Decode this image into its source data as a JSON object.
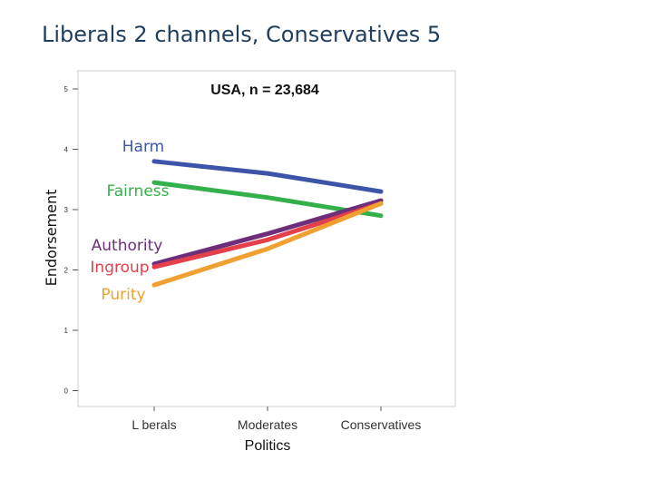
{
  "slide": {
    "title": "Liberals 2 channels, Conservatives 5"
  },
  "chart_data": {
    "type": "line",
    "title": "USA, n = 23,684",
    "xlabel": "Politics",
    "ylabel": "Endorsement",
    "categories": [
      "L berals",
      "Moderates",
      "Conservatives"
    ],
    "ylim": [
      0,
      5
    ],
    "yticks": [
      0,
      1,
      2,
      3,
      4,
      5
    ],
    "grid": false,
    "legend": "inline labels on left",
    "series": [
      {
        "name": "Harm",
        "values": [
          3.8,
          3.6,
          3.3
        ],
        "color": "#3d55a8"
      },
      {
        "name": "Fairness",
        "values": [
          3.45,
          3.2,
          2.9
        ],
        "color": "#34b04a"
      },
      {
        "name": "Authority",
        "values": [
          2.1,
          2.6,
          3.15
        ],
        "color": "#6d2f7a"
      },
      {
        "name": "Ingroup",
        "values": [
          2.05,
          2.5,
          3.1
        ],
        "color": "#e2404b"
      },
      {
        "name": "Purity",
        "values": [
          1.75,
          2.35,
          3.1
        ],
        "color": "#f0a030"
      }
    ]
  }
}
